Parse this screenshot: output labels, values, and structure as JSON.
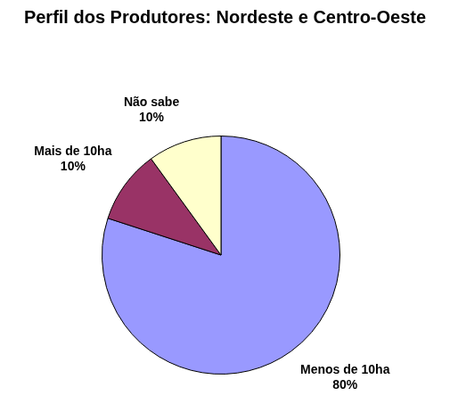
{
  "chart_data": {
    "type": "pie",
    "title": "Perfil dos Produtores: Nordeste e Centro-Oeste",
    "categories": [
      "Menos de 10ha",
      "Mais de 10ha",
      "Não sabe"
    ],
    "values": [
      80,
      10,
      10
    ],
    "value_labels": [
      "80%",
      "10%",
      "10%"
    ],
    "colors": [
      "#9999ff",
      "#993366",
      "#ffffcc"
    ],
    "data_labels": true
  }
}
